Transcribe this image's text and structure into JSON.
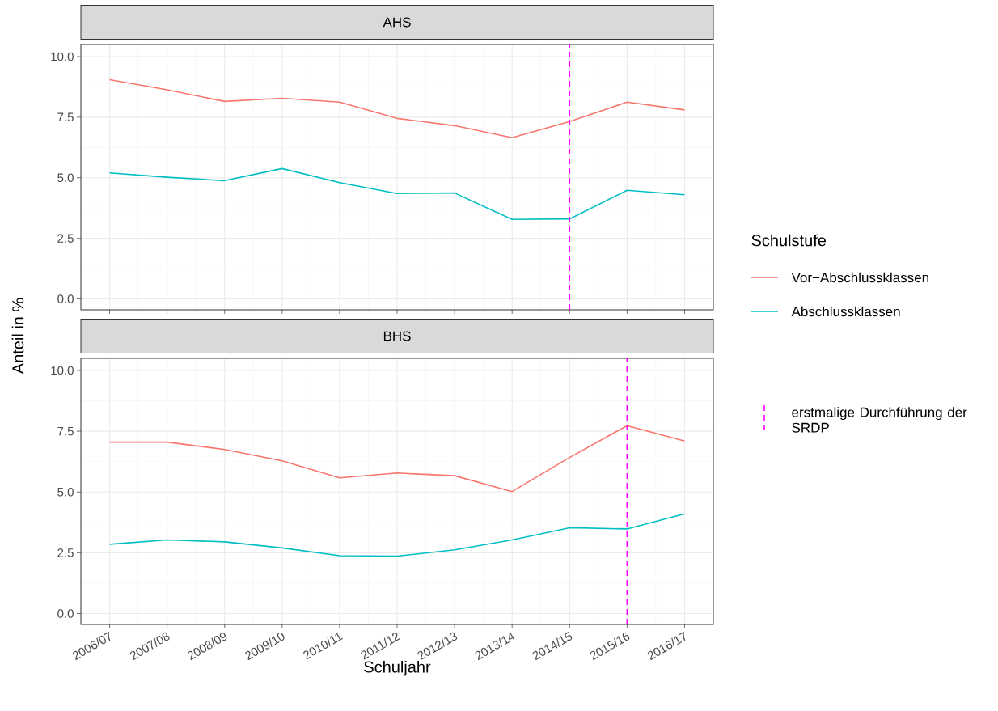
{
  "chart_data": [
    {
      "type": "line",
      "title": "AHS",
      "ylabel": "Anteil in %",
      "legend_title": "Schulstufe",
      "legend": "right",
      "grid": true,
      "tick_labels": "y",
      "categories": [
        "2006/07",
        "2007/08",
        "2008/09",
        "2009/10",
        "2010/11",
        "2011/12",
        "2012/13",
        "2013/14",
        "2014/15",
        "2015/16",
        "2016/17"
      ],
      "ylim": [
        -0.45,
        10.5
      ],
      "yticks": [
        {
          "value": 0,
          "label": "0.0"
        },
        {
          "value": 2.5,
          "label": "2.5"
        },
        {
          "value": 5,
          "label": "5.0"
        },
        {
          "value": 7.5,
          "label": "7.5"
        },
        {
          "value": 10,
          "label": "10.0"
        }
      ],
      "series": [
        {
          "name": "Vor−Abschlussklassen",
          "color": "#f8766d",
          "values": [
            9.05,
            8.63,
            8.15,
            8.28,
            8.12,
            7.45,
            7.15,
            6.65,
            7.32,
            8.12,
            7.8
          ]
        },
        {
          "name": "Abschlussklassen",
          "color": "#00bfc4",
          "values": [
            5.2,
            5.02,
            4.88,
            5.38,
            4.8,
            4.35,
            4.37,
            3.28,
            3.3,
            4.48,
            4.3
          ]
        }
      ],
      "ref_lines": [
        {
          "axis": "x",
          "value": "2014/15",
          "label": "erstmalige Durchführung der SRDP",
          "color": "#ff00ff",
          "line_style": "dashed"
        }
      ]
    },
    {
      "type": "line",
      "title": "BHS",
      "xlabel": "Schuljahr",
      "grid": true,
      "categories": [
        "2006/07",
        "2007/08",
        "2008/09",
        "2009/10",
        "2010/11",
        "2011/12",
        "2012/13",
        "2013/14",
        "2014/15",
        "2015/16",
        "2016/17"
      ],
      "ylim": [
        -0.45,
        10.5
      ],
      "yticks": [
        {
          "value": 0,
          "label": "0.0"
        },
        {
          "value": 2.5,
          "label": "2.5"
        },
        {
          "value": 5,
          "label": "5.0"
        },
        {
          "value": 7.5,
          "label": "7.5"
        },
        {
          "value": 10,
          "label": "10.0"
        }
      ],
      "series": [
        {
          "color": "#f8766d",
          "values": [
            7.05,
            7.05,
            6.75,
            6.28,
            5.58,
            5.78,
            5.67,
            5.02,
            6.42,
            7.73,
            7.1
          ]
        },
        {
          "color": "#00bfc4",
          "values": [
            2.85,
            3.03,
            2.95,
            2.7,
            2.38,
            2.36,
            2.62,
            3.03,
            3.53,
            3.48,
            4.1
          ]
        }
      ],
      "ref_lines": [
        {
          "axis": "x",
          "value": "2015/16",
          "color": "#ff00ff",
          "line_style": "dashed"
        }
      ]
    }
  ]
}
